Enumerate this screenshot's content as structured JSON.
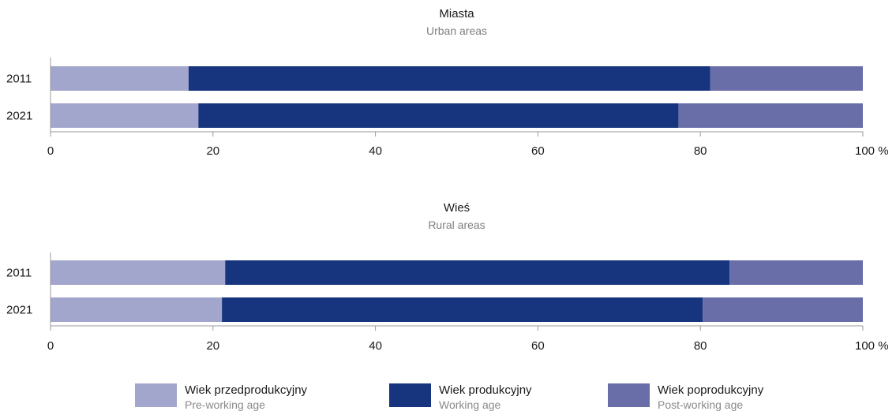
{
  "chart_data": [
    {
      "type": "bar",
      "orientation": "horizontal",
      "stacked": true,
      "title": "Miasta",
      "subtitle": "Urban areas",
      "categories": [
        "2011",
        "2021"
      ],
      "series": [
        {
          "name": "Wiek przedprodukcyjny",
          "values": [
            17.0,
            18.2
          ]
        },
        {
          "name": "Wiek produkcyjny",
          "values": [
            64.2,
            59.1
          ]
        },
        {
          "name": "Wiek poprodukcyjny",
          "values": [
            18.8,
            22.7
          ]
        }
      ],
      "xlim": [
        0,
        100
      ],
      "xticks": [
        "0",
        "20",
        "40",
        "60",
        "80",
        "100 %"
      ],
      "grid": false
    },
    {
      "type": "bar",
      "orientation": "horizontal",
      "stacked": true,
      "title": "Wieś",
      "subtitle": "Rural areas",
      "categories": [
        "2011",
        "2021"
      ],
      "series": [
        {
          "name": "Wiek przedprodukcyjny",
          "values": [
            21.5,
            21.1
          ]
        },
        {
          "name": "Wiek produkcyjny",
          "values": [
            62.1,
            59.2
          ]
        },
        {
          "name": "Wiek poprodukcyjny",
          "values": [
            16.4,
            19.7
          ]
        }
      ],
      "xlim": [
        0,
        100
      ],
      "xticks": [
        "0",
        "20",
        "40",
        "60",
        "80",
        "100 %"
      ],
      "grid": false
    }
  ],
  "legend": {
    "placement": "bottom",
    "items": [
      {
        "label": "Wiek przedprodukcyjny",
        "sublabel": "Pre-working age",
        "color": "#a3a6cc"
      },
      {
        "label": "Wiek produkcyjny",
        "sublabel": "Working age",
        "color": "#17357f"
      },
      {
        "label": "Wiek poprodukcyjny",
        "sublabel": "Post-working age",
        "color": "#6a6ea8"
      }
    ]
  },
  "colors": [
    "#a3a6cc",
    "#17357f",
    "#6a6ea8"
  ]
}
